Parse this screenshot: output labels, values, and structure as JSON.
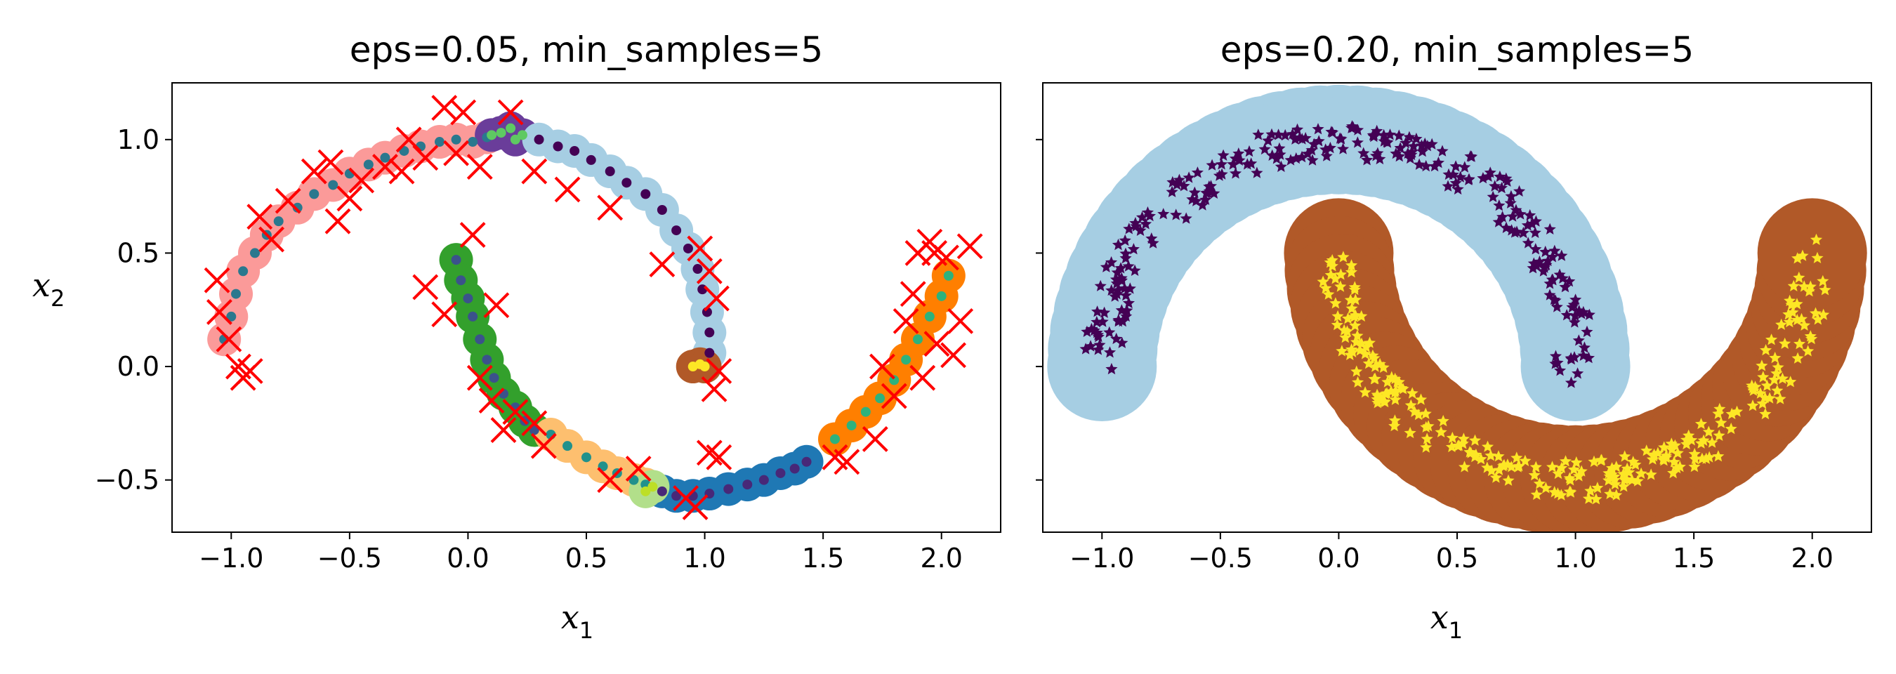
{
  "chart_data": [
    {
      "type": "scatter",
      "title": "eps=0.05, min_samples=5",
      "xlabel": "x",
      "xlabel_sub": "1",
      "ylabel": "x",
      "ylabel_sub": "2",
      "xlim": [
        -1.25,
        2.25
      ],
      "ylim": [
        -0.73,
        1.25
      ],
      "xticks": [
        -1.0,
        -0.5,
        0.0,
        0.5,
        1.0,
        1.5,
        2.0
      ],
      "xtick_labels": [
        "−1.0",
        "−0.5",
        "0.0",
        "0.5",
        "1.0",
        "1.5",
        "2.0"
      ],
      "yticks": [
        -0.5,
        0.0,
        0.5,
        1.0
      ],
      "ytick_labels": [
        "−0.5",
        "0.0",
        "0.5",
        "1.0"
      ],
      "grid": false,
      "core_marker": "o",
      "anomaly_marker": "x",
      "anomaly_color": "#ff0000",
      "clusters": [
        {
          "halo": "#fb9a99",
          "dot": "#2a788e",
          "points": [
            [
              -1.03,
              0.12
            ],
            [
              -1.0,
              0.22
            ],
            [
              -0.98,
              0.32
            ],
            [
              -0.95,
              0.42
            ],
            [
              -0.9,
              0.5
            ],
            [
              -0.85,
              0.58
            ],
            [
              -0.8,
              0.64
            ],
            [
              -0.72,
              0.7
            ],
            [
              -0.65,
              0.76
            ],
            [
              -0.57,
              0.8
            ],
            [
              -0.5,
              0.85
            ],
            [
              -0.42,
              0.89
            ],
            [
              -0.35,
              0.92
            ],
            [
              -0.27,
              0.95
            ],
            [
              -0.2,
              0.97
            ],
            [
              -0.12,
              0.99
            ],
            [
              -0.05,
              1.0
            ],
            [
              0.02,
              0.99
            ],
            [
              0.08,
              1.01
            ]
          ]
        },
        {
          "halo": "#6a3d9a",
          "dot": "#5ec962",
          "points": [
            [
              0.1,
              1.02
            ],
            [
              0.14,
              1.03
            ],
            [
              0.18,
              1.05
            ],
            [
              0.2,
              1.0
            ],
            [
              0.23,
              1.02
            ]
          ]
        },
        {
          "halo": "#a6cee3",
          "dot": "#440154",
          "points": [
            [
              0.3,
              1.0
            ],
            [
              0.38,
              0.97
            ],
            [
              0.45,
              0.95
            ],
            [
              0.52,
              0.91
            ],
            [
              0.6,
              0.86
            ],
            [
              0.67,
              0.81
            ],
            [
              0.75,
              0.76
            ],
            [
              0.82,
              0.69
            ],
            [
              0.88,
              0.6
            ],
            [
              0.93,
              0.52
            ],
            [
              0.97,
              0.43
            ],
            [
              0.99,
              0.34
            ],
            [
              1.01,
              0.24
            ],
            [
              1.02,
              0.15
            ],
            [
              1.02,
              0.06
            ]
          ]
        },
        {
          "halo": "#b15928",
          "dot": "#fde725",
          "points": [
            [
              0.95,
              0.0
            ],
            [
              0.98,
              0.01
            ],
            [
              1.0,
              0.0
            ]
          ]
        },
        {
          "halo": "#33a02c",
          "dot": "#3b528b",
          "points": [
            [
              -0.05,
              0.47
            ],
            [
              -0.03,
              0.38
            ],
            [
              0.0,
              0.3
            ],
            [
              0.02,
              0.22
            ],
            [
              0.05,
              0.12
            ],
            [
              0.08,
              0.03
            ],
            [
              0.11,
              -0.05
            ],
            [
              0.15,
              -0.12
            ],
            [
              0.2,
              -0.18
            ],
            [
              0.24,
              -0.24
            ],
            [
              0.28,
              -0.28
            ]
          ]
        },
        {
          "halo": "#fdbf6f",
          "dot": "#21918c",
          "points": [
            [
              0.35,
              -0.3
            ],
            [
              0.42,
              -0.35
            ],
            [
              0.5,
              -0.4
            ],
            [
              0.57,
              -0.44
            ],
            [
              0.63,
              -0.47
            ],
            [
              0.7,
              -0.5
            ],
            [
              0.75,
              -0.52
            ]
          ]
        },
        {
          "halo": "#1f78b4",
          "dot": "#482878",
          "points": [
            [
              0.82,
              -0.55
            ],
            [
              0.88,
              -0.57
            ],
            [
              0.95,
              -0.57
            ],
            [
              1.02,
              -0.56
            ],
            [
              1.1,
              -0.54
            ],
            [
              1.18,
              -0.52
            ],
            [
              1.25,
              -0.5
            ],
            [
              1.32,
              -0.47
            ],
            [
              1.38,
              -0.45
            ],
            [
              1.43,
              -0.42
            ]
          ]
        },
        {
          "halo": "#ff7f00",
          "dot": "#2db27d",
          "points": [
            [
              1.55,
              -0.32
            ],
            [
              1.62,
              -0.26
            ],
            [
              1.68,
              -0.2
            ],
            [
              1.74,
              -0.14
            ],
            [
              1.8,
              -0.06
            ],
            [
              1.85,
              0.03
            ],
            [
              1.9,
              0.12
            ],
            [
              1.95,
              0.22
            ],
            [
              2.0,
              0.31
            ],
            [
              2.03,
              0.4
            ]
          ]
        },
        {
          "halo": "#b2df8a",
          "dot": "#bddf26",
          "points": [
            [
              0.75,
              -0.55
            ],
            [
              0.78,
              -0.53
            ]
          ]
        }
      ],
      "anomalies": [
        [
          -1.06,
          0.38
        ],
        [
          -1.05,
          0.24
        ],
        [
          -1.01,
          0.12
        ],
        [
          -0.97,
          0.0
        ],
        [
          -0.95,
          -0.05
        ],
        [
          -0.92,
          -0.02
        ],
        [
          -0.88,
          0.66
        ],
        [
          -0.83,
          0.56
        ],
        [
          -0.76,
          0.73
        ],
        [
          -0.65,
          0.86
        ],
        [
          -0.58,
          0.9
        ],
        [
          -0.55,
          0.64
        ],
        [
          -0.5,
          0.74
        ],
        [
          -0.45,
          0.82
        ],
        [
          -0.35,
          0.88
        ],
        [
          -0.28,
          0.86
        ],
        [
          -0.25,
          1.0
        ],
        [
          -0.18,
          0.92
        ],
        [
          -0.1,
          1.14
        ],
        [
          -0.05,
          0.94
        ],
        [
          -0.02,
          1.12
        ],
        [
          0.02,
          0.58
        ],
        [
          0.05,
          0.88
        ],
        [
          0.18,
          1.12
        ],
        [
          0.28,
          0.86
        ],
        [
          0.42,
          0.78
        ],
        [
          0.6,
          0.7
        ],
        [
          0.82,
          0.45
        ],
        [
          0.98,
          0.52
        ],
        [
          1.02,
          0.42
        ],
        [
          1.05,
          0.3
        ],
        [
          1.06,
          -0.02
        ],
        [
          1.04,
          -0.1
        ],
        [
          -0.18,
          0.35
        ],
        [
          -0.1,
          0.23
        ],
        [
          0.12,
          0.27
        ],
        [
          0.05,
          -0.05
        ],
        [
          0.1,
          -0.15
        ],
        [
          0.2,
          -0.2
        ],
        [
          0.15,
          -0.28
        ],
        [
          0.28,
          -0.25
        ],
        [
          0.32,
          -0.35
        ],
        [
          0.6,
          -0.5
        ],
        [
          0.72,
          -0.45
        ],
        [
          0.92,
          -0.58
        ],
        [
          0.96,
          -0.62
        ],
        [
          1.02,
          -0.38
        ],
        [
          1.06,
          -0.4
        ],
        [
          1.55,
          -0.4
        ],
        [
          1.6,
          -0.42
        ],
        [
          1.72,
          -0.32
        ],
        [
          1.75,
          0.0
        ],
        [
          1.8,
          -0.13
        ],
        [
          1.85,
          0.2
        ],
        [
          1.88,
          0.32
        ],
        [
          1.9,
          0.5
        ],
        [
          1.92,
          -0.05
        ],
        [
          1.95,
          0.55
        ],
        [
          1.98,
          0.1
        ],
        [
          2.02,
          0.48
        ],
        [
          2.05,
          0.05
        ],
        [
          2.08,
          0.2
        ],
        [
          2.12,
          0.53
        ],
        [
          1.97,
          0.5
        ]
      ]
    },
    {
      "type": "scatter",
      "title": "eps=0.20, min_samples=5",
      "xlabel": "x",
      "xlabel_sub": "1",
      "xlim": [
        -1.25,
        2.25
      ],
      "ylim": [
        -0.73,
        1.25
      ],
      "xticks": [
        -1.0,
        -0.5,
        0.0,
        0.5,
        1.0,
        1.5,
        2.0
      ],
      "xtick_labels": [
        "−1.0",
        "−0.5",
        "0.0",
        "0.5",
        "1.0",
        "1.5",
        "2.0"
      ],
      "yticks": [
        -0.5,
        0.0,
        0.5,
        1.0
      ],
      "ytick_labels_visible": false,
      "grid": false,
      "core_marker": "*",
      "clusters": [
        {
          "halo": "#a6cee3",
          "dot": "#440154",
          "curve": "upper"
        },
        {
          "halo": "#b15928",
          "dot": "#fde725",
          "curve": "lower"
        }
      ]
    }
  ]
}
